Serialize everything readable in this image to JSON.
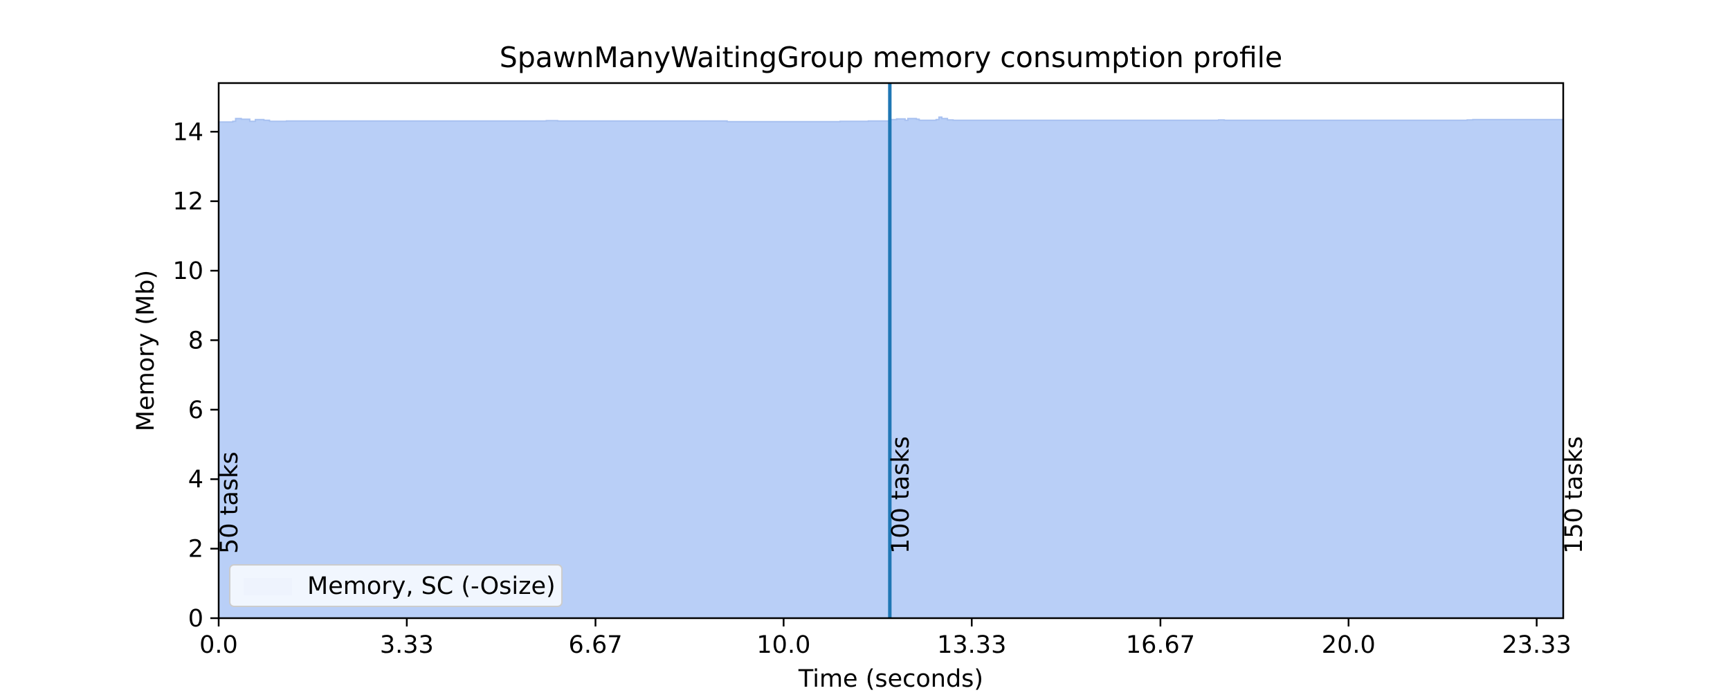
{
  "chart_data": {
    "type": "area",
    "title": "SpawnManyWaitingGroup memory consumption profile",
    "xlabel": "Time (seconds)",
    "ylabel": "Memory (Mb)",
    "xlim": [
      0,
      23.8
    ],
    "ylim": [
      0,
      15.4
    ],
    "xticks": [
      0,
      3.33,
      6.67,
      10,
      13.33,
      16.67,
      20,
      23.33
    ],
    "xtick_labels": [
      "0.0",
      "3.33",
      "6.67",
      "10.0",
      "13.33",
      "16.67",
      "20.0",
      "23.33"
    ],
    "yticks": [
      0,
      2,
      4,
      6,
      8,
      10,
      12,
      14
    ],
    "ytick_labels": [
      "0",
      "2",
      "4",
      "6",
      "8",
      "10",
      "12",
      "14"
    ],
    "grid": false,
    "legend_position": "lower-left",
    "series": [
      {
        "name": "Memory, SC (-Osize)",
        "color": "#aec7f5",
        "x": [
          0,
          0.25,
          0.3,
          0.4,
          0.55,
          0.65,
          0.8,
          0.9,
          1.2,
          2.0,
          5.8,
          6.0,
          8.9,
          9.0,
          10.7,
          11.0,
          11.5,
          11.9,
          12.0,
          12.15,
          12.2,
          12.35,
          12.4,
          12.7,
          12.75,
          12.8,
          12.9,
          13.0,
          17.7,
          17.8,
          22.1,
          22.2,
          23.8
        ],
        "y": [
          14.28,
          14.3,
          14.38,
          14.36,
          14.3,
          14.35,
          14.33,
          14.3,
          14.31,
          14.31,
          14.32,
          14.31,
          14.31,
          14.29,
          14.29,
          14.3,
          14.31,
          14.35,
          14.37,
          14.33,
          14.38,
          14.36,
          14.33,
          14.35,
          14.42,
          14.38,
          14.34,
          14.33,
          14.34,
          14.33,
          14.34,
          14.35,
          14.35
        ]
      }
    ],
    "markers": [
      {
        "x": 0,
        "label": "50 tasks"
      },
      {
        "x": 11.88,
        "label": "100 tasks"
      },
      {
        "x": 23.8,
        "label": "150 tasks"
      }
    ],
    "marker_line_x": 11.88
  },
  "colors": {
    "fill": "#b9cff7",
    "fill_edge": "#a8c1f0",
    "marker_line": "#1f77b4",
    "axes": "#000000"
  }
}
